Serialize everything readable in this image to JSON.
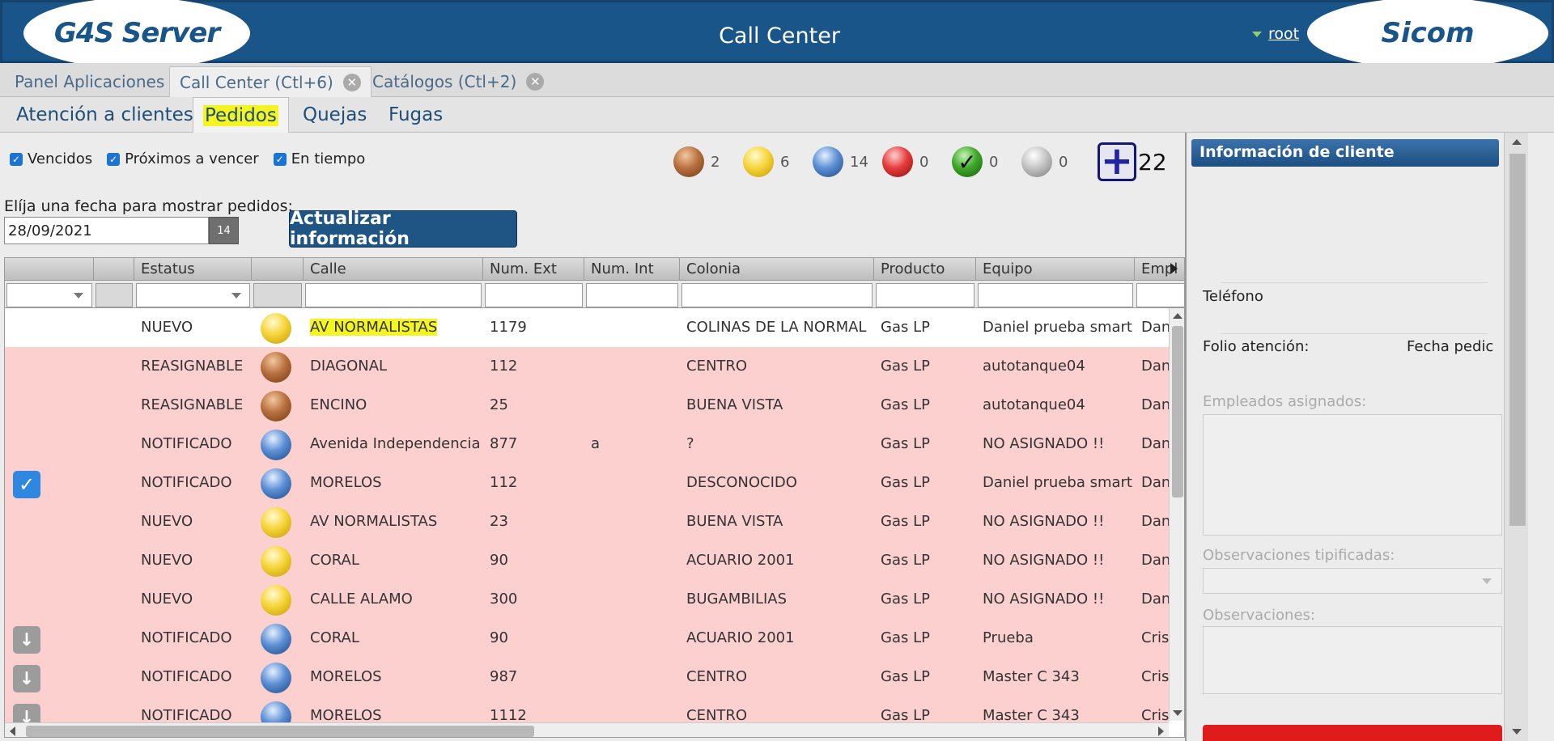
{
  "header": {
    "logo_left": "G4S Server",
    "title": "Call Center",
    "user": "root",
    "logo_right": "Sicom"
  },
  "app_tabs": [
    {
      "label": "Panel Aplicaciones"
    },
    {
      "label": "Call Center (Ctl+6)"
    },
    {
      "label": "Catálogos (Ctl+2)"
    }
  ],
  "sub_tabs": [
    {
      "label": "Atención a clientes"
    },
    {
      "label": "Pedidos"
    },
    {
      "label": "Quejas"
    },
    {
      "label": "Fugas"
    }
  ],
  "filters": {
    "vencidos": "Vencidos",
    "proximos": "Próximos a vencer",
    "en_tiempo": "En tiempo"
  },
  "counters": {
    "brown": "2",
    "yellow": "6",
    "blue": "14",
    "red": "0",
    "green": "0",
    "gray": "0",
    "total": "22"
  },
  "date": {
    "label": "Elíja una fecha para mostrar pedidos:",
    "value": "28/09/2021",
    "calendar_day": "14"
  },
  "refresh_button": "Actualizar información",
  "grid": {
    "headers": [
      "Estatus",
      "Calle",
      "Num. Ext",
      "Num. Int",
      "Colonia",
      "Producto",
      "Equipo",
      "Empl"
    ],
    "rows": [
      {
        "status": "NUEVO",
        "ball": "yellow",
        "calle": "AV NORMALISTAS",
        "ext": "1179",
        "int": "",
        "colonia": "COLINAS DE LA NORMAL",
        "producto": "Gas LP",
        "equipo": "Daniel prueba smart",
        "empleado": "Dan"
      },
      {
        "status": "REASIGNABLE",
        "ball": "brown",
        "calle": "DIAGONAL",
        "ext": "112",
        "int": "",
        "colonia": "CENTRO",
        "producto": "Gas LP",
        "equipo": "autotanque04",
        "empleado": "Dan"
      },
      {
        "status": "REASIGNABLE",
        "ball": "brown",
        "calle": "ENCINO",
        "ext": "25",
        "int": "",
        "colonia": "BUENA VISTA",
        "producto": "Gas LP",
        "equipo": "autotanque04",
        "empleado": "Dan"
      },
      {
        "status": "NOTIFICADO",
        "ball": "blue",
        "calle": "Avenida Independencia",
        "ext": "877",
        "int": "a",
        "colonia": "?",
        "producto": "Gas LP",
        "equipo": "NO ASIGNADO !!",
        "empleado": "Dan"
      },
      {
        "status": "NOTIFICADO",
        "ball": "blue",
        "calle": "MORELOS",
        "ext": "112",
        "int": "",
        "colonia": "DESCONOCIDO",
        "producto": "Gas LP",
        "equipo": "Daniel prueba smart",
        "empleado": "Dan"
      },
      {
        "status": "NUEVO",
        "ball": "yellow",
        "calle": "AV NORMALISTAS",
        "ext": "23",
        "int": "",
        "colonia": "BUENA VISTA",
        "producto": "Gas LP",
        "equipo": "NO ASIGNADO !!",
        "empleado": "Dan"
      },
      {
        "status": "NUEVO",
        "ball": "yellow",
        "calle": "CORAL",
        "ext": "90",
        "int": "",
        "colonia": "ACUARIO 2001",
        "producto": "Gas LP",
        "equipo": "NO ASIGNADO !!",
        "empleado": "Dan"
      },
      {
        "status": "NUEVO",
        "ball": "yellow",
        "calle": "CALLE ALAMO",
        "ext": "300",
        "int": "",
        "colonia": "BUGAMBILIAS",
        "producto": "Gas LP",
        "equipo": "NO ASIGNADO !!",
        "empleado": "Dan"
      },
      {
        "status": "NOTIFICADO",
        "ball": "blue",
        "calle": "CORAL",
        "ext": "90",
        "int": "",
        "colonia": "ACUARIO 2001",
        "producto": "Gas LP",
        "equipo": "Prueba",
        "empleado": "Cris"
      },
      {
        "status": "NOTIFICADO",
        "ball": "blue",
        "calle": "MORELOS",
        "ext": "987",
        "int": "",
        "colonia": "CENTRO",
        "producto": "Gas LP",
        "equipo": "Master C 343",
        "empleado": "Cris"
      },
      {
        "status": "NOTIFICADO",
        "ball": "blue",
        "calle": "MORELOS",
        "ext": "1112",
        "int": "",
        "colonia": "CENTRO",
        "producto": "Gas LP",
        "equipo": "Master C 343",
        "empleado": "Cris"
      }
    ]
  },
  "side": {
    "title": "Información de cliente",
    "telefono": "Teléfono",
    "folio": "Folio atención:",
    "fecha": "Fecha pedic",
    "empleados": "Empleados asignados:",
    "observaciones_tip": "Observaciones tipificadas:",
    "observaciones": "Observaciones:"
  },
  "colors": {
    "header_bg": "#1a5589",
    "row_pink": "#fdd0d0",
    "highlight": "#f4f421"
  }
}
